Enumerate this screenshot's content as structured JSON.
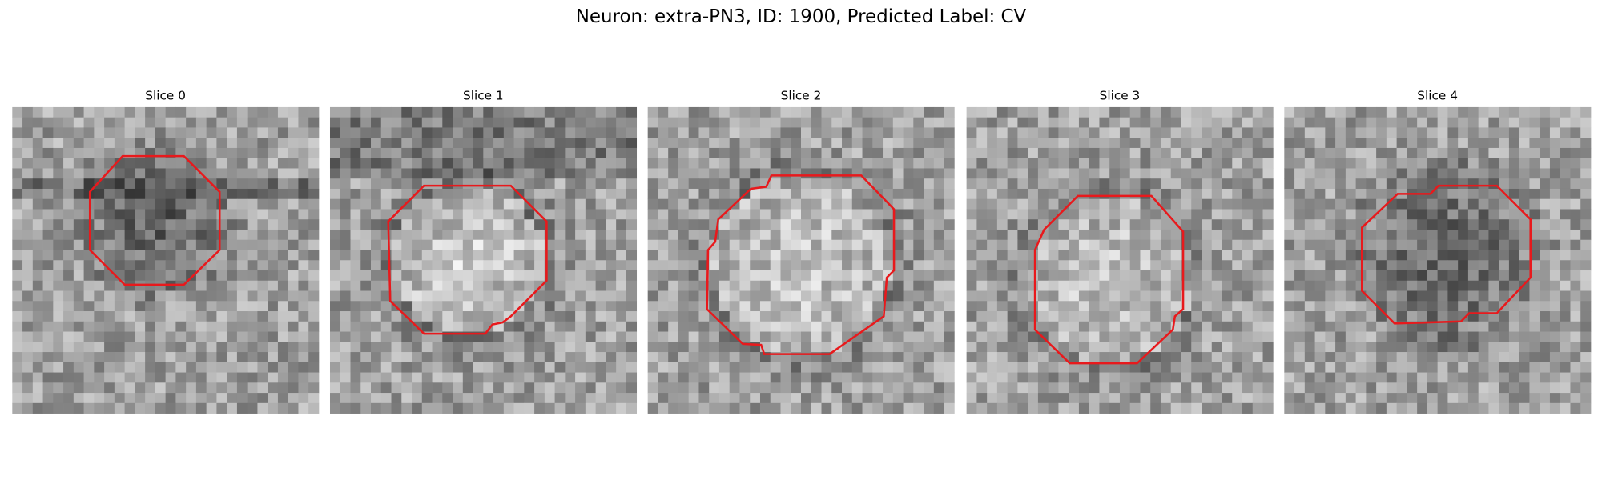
{
  "title": "Neuron: extra-PN3, ID: 1900, Predicted Label: CV",
  "panels": [
    {
      "title": "Slice 0"
    },
    {
      "title": "Slice 1"
    },
    {
      "title": "Slice 2"
    },
    {
      "title": "Slice 3"
    },
    {
      "title": "Slice 4"
    }
  ]
}
